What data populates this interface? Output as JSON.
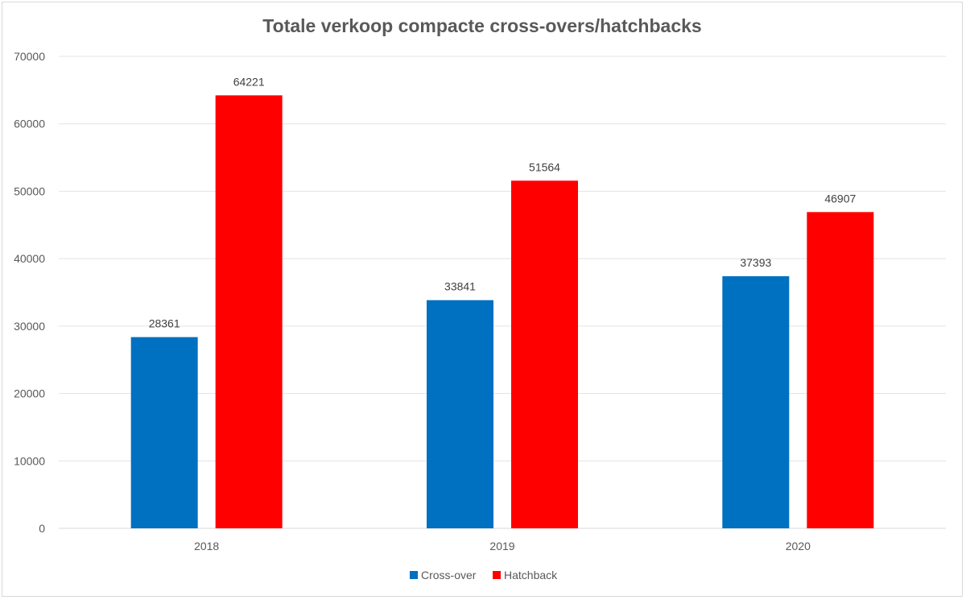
{
  "chart_data": {
    "type": "bar",
    "title": "Totale verkoop compacte cross-overs/hatchbacks",
    "categories": [
      "2018",
      "2019",
      "2020"
    ],
    "series": [
      {
        "name": "Cross-over",
        "color": "#0070c0",
        "values": [
          28361,
          33841,
          37393
        ]
      },
      {
        "name": "Hatchback",
        "color": "#ff0000",
        "values": [
          64221,
          51564,
          46907
        ]
      }
    ],
    "xlabel": "",
    "ylabel": "",
    "ylim": [
      0,
      70000
    ],
    "yticks": [
      "0",
      "10000",
      "20000",
      "30000",
      "40000",
      "50000",
      "60000",
      "70000"
    ],
    "grid": true,
    "legend_position": "bottom"
  }
}
